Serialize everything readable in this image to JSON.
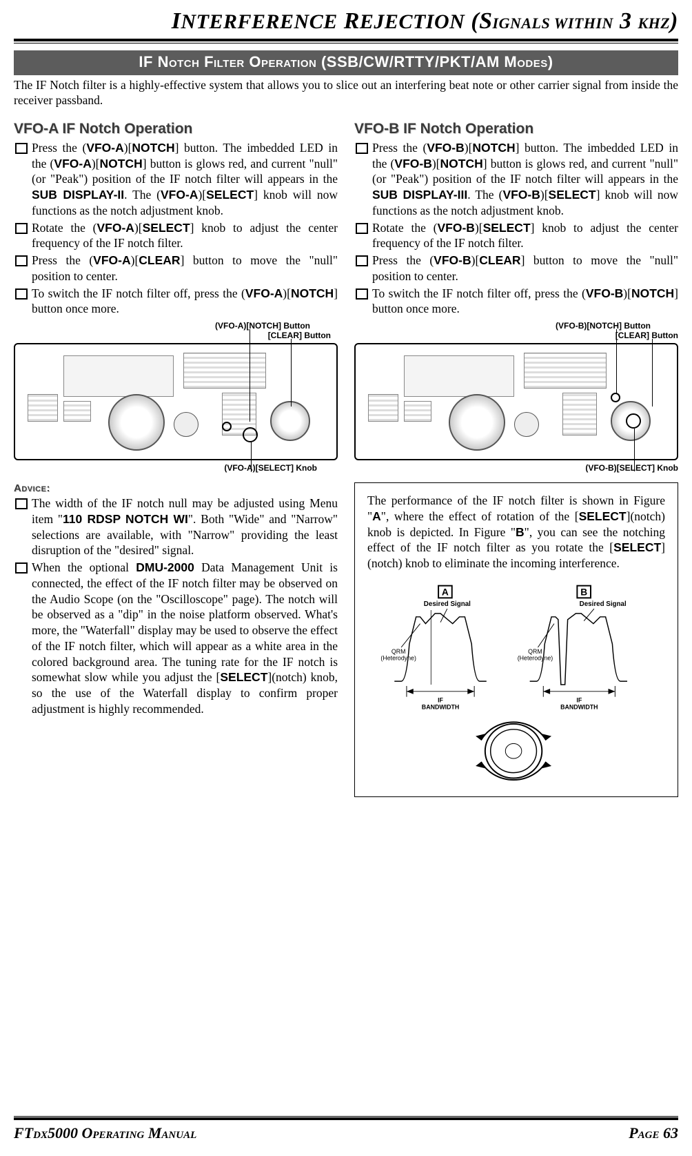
{
  "title_html": "I<span style='font-size:30px'>NTERFERENCE</span> R<span style='font-size:30px'>EJECTION</span> (S<span style='font-size:22px'>IGNALS WITHIN</span> 3 <span style='font-size:22px'>KHZ</span>)",
  "section_bar": "IF Notch Filter Operation (SSB/CW/RTTY/PKT/AM Modes)",
  "intro": "The IF Notch filter is a highly-effective system that allows you to slice out an interfering beat note or other carrier signal from inside the receiver passband.",
  "vfoa": {
    "heading": "VFO-A IF Notch Operation",
    "steps": [
      "Press the (<span class='b'>VFO-A</span>)[<span class='b'>NOTCH</span>] button. The imbedded LED in the (<span class='b'>VFO-A</span>)[<span class='b'>NOTCH</span>] button is glows red, and current \"null\" (or \"Peak\") position of the IF notch filter will appears in the <span class='b'>SUB DISPLAY-II</span>. The (<span class='b'>VFO-A</span>)[<span class='b'>SELECT</span>] knob will now functions as the notch adjustment knob.",
      "Rotate the (<span class='b'>VFO-A</span>)[<span class='b'>SELECT</span>] knob to adjust the center frequency of the IF notch filter.",
      "Press the (<span class='b'>VFO-A</span>)[<span class='b'>CLEAR</span>] button to move the \"null\" position to center.",
      "To switch the IF notch filter off, press the (<span class='b'>VFO-A</span>)[<span class='b'>NOTCH</span>] button once more."
    ],
    "label_notch": "(VFO-A)[NOTCH] Button",
    "label_clear": "[CLEAR] Button",
    "label_select": "(VFO-A)[SELECT] Knob"
  },
  "vfob": {
    "heading": "VFO-B IF Notch Operation",
    "steps": [
      "Press the (<span class='b'>VFO-B</span>)[<span class='b'>NOTCH</span>] button. The imbedded LED in the (<span class='b'>VFO-B</span>)[<span class='b'>NOTCH</span>] button is glows red, and current \"null\" (or \"Peak\") position of the IF notch filter will appears in the <span class='b'>SUB DISPLAY-III</span>. The (<span class='b'>VFO-B</span>)[<span class='b'>SELECT</span>] knob will now functions as the notch adjustment knob.",
      "Rotate the (<span class='b'>VFO-B</span>)[<span class='b'>SELECT</span>] knob to adjust the center frequency of the IF notch filter.",
      "Press the (<span class='b'>VFO-B</span>)[<span class='b'>CLEAR</span>] button to move the \"null\" position to center.",
      "To switch the IF notch filter off, press the (<span class='b'>VFO-B</span>)[<span class='b'>NOTCH</span>] button once more."
    ],
    "label_notch": "(VFO-B)[NOTCH] Button",
    "label_clear": "[CLEAR] Button",
    "label_select": "(VFO-B)[SELECT] Knob"
  },
  "advice": {
    "heading": "Advice:",
    "items": [
      "The width of the IF notch null may be adjusted using Menu item \"<span class='b'>110 RDSP NOTCH WI</span>\". Both \"Wide\" and \"Narrow\" selections are available, with \"Narrow\" providing the least disruption of the \"desired\" signal.",
      "When the optional <span class='b'>DMU-2000</span> Data Management Unit is connected, the effect of the IF notch filter may be observed on the Audio Scope (on the \"Oscilloscope\" page). The notch will be observed as a \"dip\" in the noise platform observed. What's more, the \"Waterfall\" display may be used to observe the effect of the IF notch filter, which will appear as a white area in the colored background area. The tuning rate for the IF notch is somewhat slow while you adjust the [<span class='b'>SELECT</span>](notch) knob, so the use of the Waterfall display to confirm proper adjustment is highly recommended."
    ]
  },
  "infobox": "The performance of the IF notch filter is shown in Figure \"<span class='b'>A</span>\", where the effect of rotation of the [<span class='b'>SELECT</span>](notch) knob is depicted. In Figure \"<span class='b'>B</span>\", you can see the notching effect of the IF notch filter as you rotate the [<span class='b'>SELECT</span>](notch) knob to eliminate the incoming interference.",
  "diagram": {
    "label_desired": "Desired Signal",
    "label_qrm": "QRM\n(Heterodyne)",
    "label_ifbw": "IF\nBANDWIDTH",
    "letterA": "A",
    "letterB": "B"
  },
  "footer": {
    "left": "FTdx5000 Operating Manual",
    "right": "Page 63"
  }
}
